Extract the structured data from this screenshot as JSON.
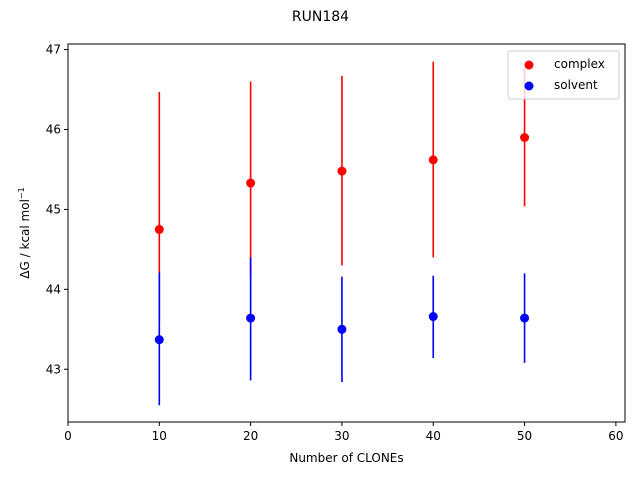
{
  "chart_data": {
    "type": "scatter",
    "title": "RUN184",
    "xlabel": "Number of CLONEs",
    "ylabel_main": "ΔG / kcal mol",
    "ylabel_sup": "−1",
    "xlim": [
      0,
      61
    ],
    "ylim": [
      42.34,
      47.07
    ],
    "x_ticks": [
      0,
      10,
      20,
      30,
      40,
      50,
      60
    ],
    "y_ticks": [
      43,
      44,
      45,
      46,
      47
    ],
    "grid": false,
    "legend_position": "top-right",
    "series": [
      {
        "name": "complex",
        "color": "#ff0000",
        "points": [
          {
            "x": 10,
            "y": 44.75,
            "low": 43.6,
            "high": 46.47
          },
          {
            "x": 20,
            "y": 45.33,
            "low": 44.14,
            "high": 46.6
          },
          {
            "x": 30,
            "y": 45.48,
            "low": 44.3,
            "high": 46.67
          },
          {
            "x": 40,
            "y": 45.62,
            "low": 44.4,
            "high": 46.85
          },
          {
            "x": 50,
            "y": 45.9,
            "low": 45.04,
            "high": 46.77
          }
        ]
      },
      {
        "name": "solvent",
        "color": "#0000ff",
        "points": [
          {
            "x": 10,
            "y": 43.37,
            "low": 42.55,
            "high": 44.21
          },
          {
            "x": 20,
            "y": 43.64,
            "low": 42.86,
            "high": 44.4
          },
          {
            "x": 30,
            "y": 43.5,
            "low": 42.84,
            "high": 44.16
          },
          {
            "x": 40,
            "y": 43.66,
            "low": 43.14,
            "high": 44.17
          },
          {
            "x": 50,
            "y": 43.64,
            "low": 43.08,
            "high": 44.2
          }
        ]
      }
    ]
  }
}
